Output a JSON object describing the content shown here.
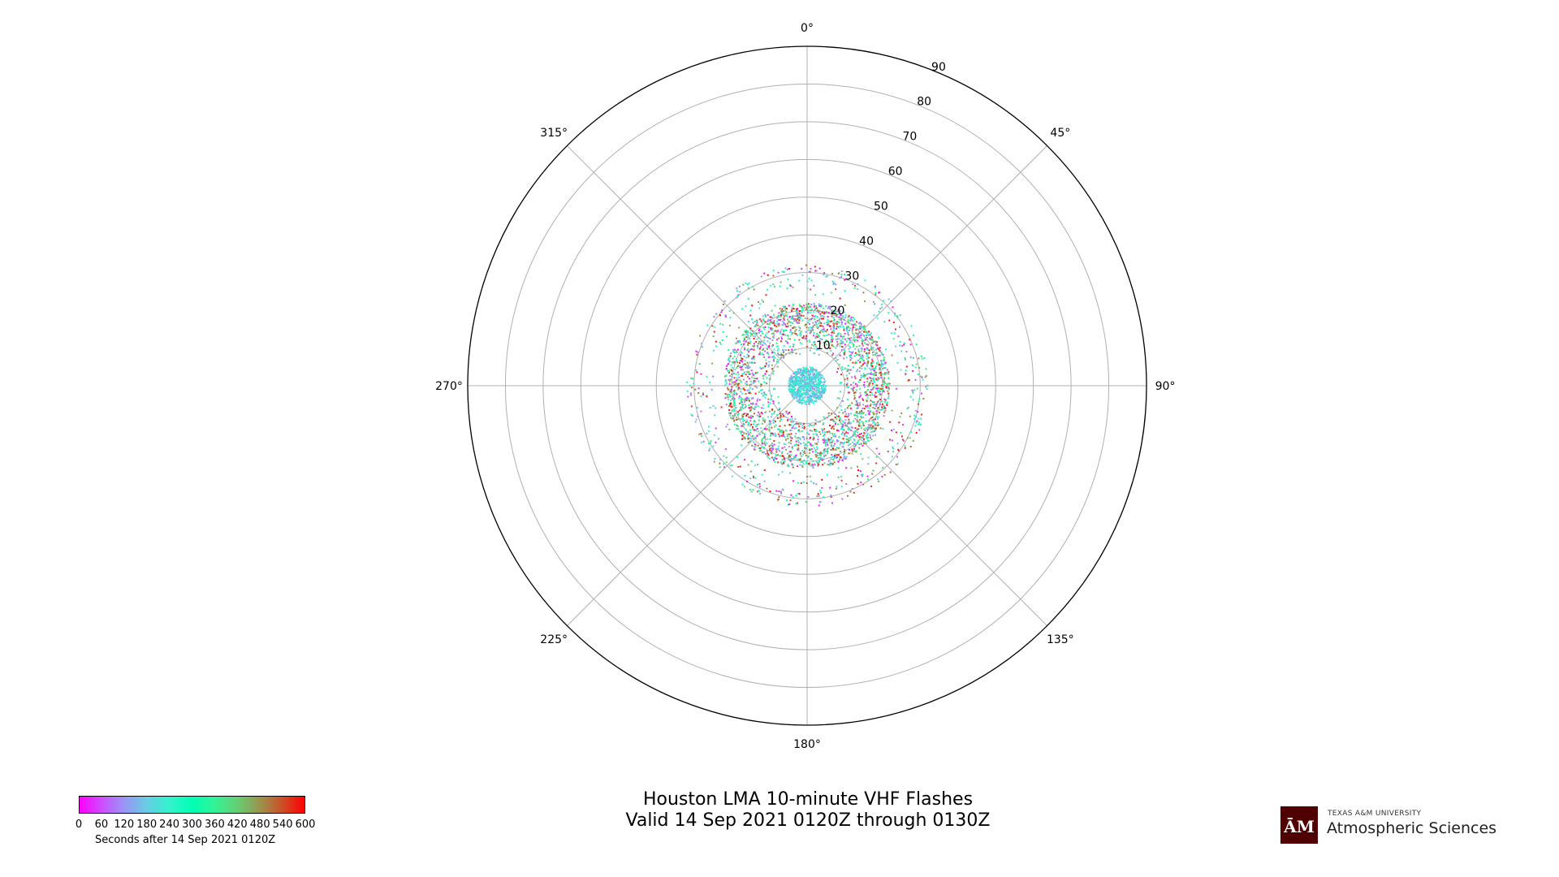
{
  "chart_data": {
    "type": "scatter",
    "projection": "polar",
    "theta_direction": "clockwise",
    "theta_zero": "north",
    "title": "Houston LMA 10-minute VHF Flashes",
    "subtitle": "Valid 14 Sep 2021 0120Z through 0130Z",
    "theta_tick_labels": [
      "0°",
      "45°",
      "90°",
      "135°",
      "180°",
      "225°",
      "270°",
      "315°"
    ],
    "theta_ticks_deg": [
      0,
      45,
      90,
      135,
      180,
      225,
      270,
      315
    ],
    "r_tick_labels": [
      "10",
      "20",
      "30",
      "40",
      "50",
      "60",
      "70",
      "80",
      "90"
    ],
    "r_ticks": [
      10,
      20,
      30,
      40,
      50,
      60,
      70,
      80,
      90
    ],
    "rlim": [
      0,
      90
    ],
    "grid": true,
    "colormap": "rainbow",
    "color_range": [
      0,
      600
    ],
    "point_distribution": [
      {
        "r_range": [
          0,
          5
        ],
        "time_range": [
          100,
          300
        ],
        "count": 700
      },
      {
        "r_range": [
          8,
          22
        ],
        "time_range": [
          0,
          600
        ],
        "count": 2600
      },
      {
        "r_range": [
          22,
          32
        ],
        "time_range": [
          0,
          600
        ],
        "count": 500
      }
    ],
    "colorbar": {
      "ticks": [
        "0",
        "60",
        "120",
        "180",
        "240",
        "300",
        "360",
        "420",
        "480",
        "540",
        "600"
      ],
      "label": "Seconds after 14 Sep 2021 0120Z"
    }
  },
  "logo": {
    "small_text": "TEXAS A&M UNIVERSITY",
    "big_text": "Atmospheric Sciences",
    "mark_color": "#500000"
  }
}
